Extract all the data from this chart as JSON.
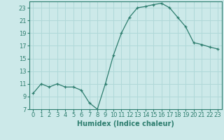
{
  "x": [
    0,
    1,
    2,
    3,
    4,
    5,
    6,
    7,
    8,
    9,
    10,
    11,
    12,
    13,
    14,
    15,
    16,
    17,
    18,
    19,
    20,
    21,
    22,
    23
  ],
  "y": [
    9.5,
    11.0,
    10.5,
    11.0,
    10.5,
    10.5,
    10.0,
    8.0,
    7.0,
    11.0,
    15.5,
    19.0,
    21.5,
    23.0,
    23.2,
    23.5,
    23.7,
    23.0,
    21.5,
    20.0,
    17.5,
    17.2,
    16.8,
    16.5
  ],
  "xlabel": "Humidex (Indice chaleur)",
  "ylim": [
    7,
    24
  ],
  "xlim": [
    -0.5,
    23.5
  ],
  "yticks": [
    7,
    9,
    11,
    13,
    15,
    17,
    19,
    21,
    23
  ],
  "xticks": [
    0,
    1,
    2,
    3,
    4,
    5,
    6,
    7,
    8,
    9,
    10,
    11,
    12,
    13,
    14,
    15,
    16,
    17,
    18,
    19,
    20,
    21,
    22,
    23
  ],
  "line_color": "#2d7d6e",
  "marker": "+",
  "bg_color": "#cce9e9",
  "grid_color": "#b0d8d8",
  "tick_label_color": "#2d7d6e",
  "xlabel_color": "#2d7d6e",
  "tick_font_size": 6,
  "xlabel_font_size": 7
}
